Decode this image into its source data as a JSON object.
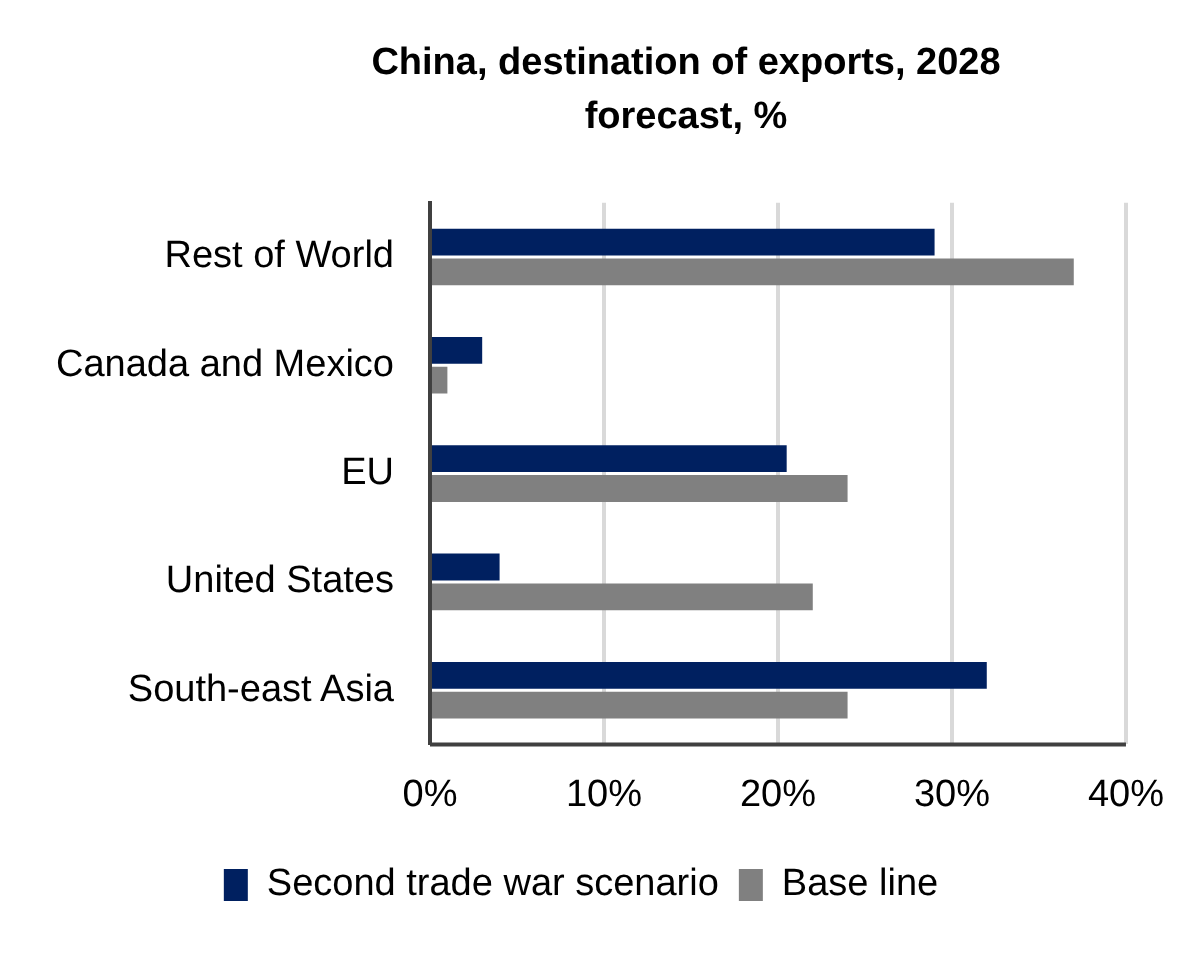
{
  "chart_data": {
    "type": "bar",
    "orientation": "horizontal",
    "title": "China, destination of exports, 2028 forecast, %",
    "categories": [
      "Rest of World",
      "Canada and Mexico",
      "EU",
      "United States",
      "South-east Asia"
    ],
    "series": [
      {
        "name": "Second trade war scenario",
        "color": "#002060",
        "values": [
          29,
          3,
          20.5,
          4,
          32
        ]
      },
      {
        "name": "Base line",
        "color": "#808080",
        "values": [
          37,
          1,
          24,
          22,
          24
        ]
      }
    ],
    "xlim": [
      0,
      40
    ],
    "xticks": [
      {
        "value": 0,
        "label": "0%"
      },
      {
        "value": 10,
        "label": "10%"
      },
      {
        "value": 20,
        "label": "20%"
      },
      {
        "value": 30,
        "label": "30%"
      },
      {
        "value": 40,
        "label": "40%"
      }
    ],
    "grid": "x",
    "legend": "bottom"
  }
}
